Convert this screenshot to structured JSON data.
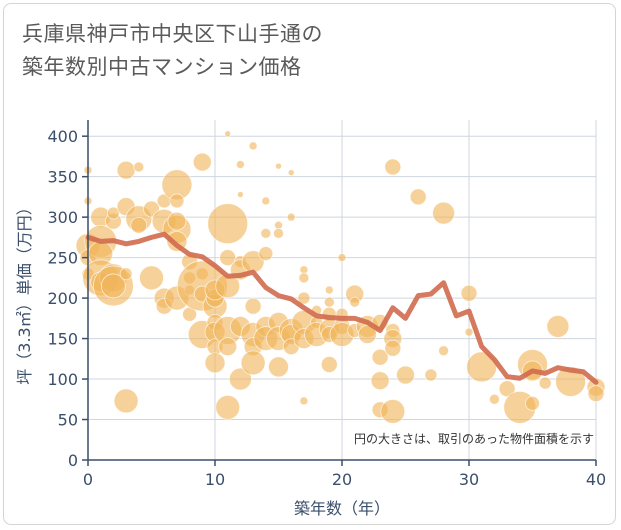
{
  "title_line1": "兵庫県神戸市中央区下山手通の",
  "title_line2": "築年数別中古マンション価格",
  "chart_data": {
    "type": "scatter",
    "title": "兵庫県神戸市中央区下山手通の築年数別中古マンション価格",
    "xlabel": "築年数（年）",
    "ylabel": "坪（3.3㎡）単価（万円）",
    "xlim": [
      0,
      40
    ],
    "ylim": [
      0,
      420
    ],
    "xticks": [
      0,
      10,
      20,
      30,
      40
    ],
    "yticks": [
      0,
      50,
      100,
      150,
      200,
      250,
      300,
      350,
      400
    ],
    "grid": true,
    "annotation": "円の大きさは、取引のあった物件面積を示す",
    "colors": {
      "bubble": "#f0b45a",
      "line": "#d06a4e",
      "grid": "#cfd6df",
      "axis": "#3b4f6b"
    },
    "series": [
      {
        "type": "line",
        "x": [
          0,
          1,
          2,
          3,
          4,
          5,
          6,
          7,
          8,
          9,
          10,
          11,
          12,
          13,
          14,
          15,
          16,
          17,
          18,
          19,
          20,
          21,
          22,
          23,
          24,
          25,
          26,
          27,
          28,
          29,
          30,
          31,
          32,
          33,
          34,
          35,
          36,
          37,
          38,
          39,
          40
        ],
        "y": [
          275,
          270,
          271,
          267,
          270,
          275,
          279,
          265,
          254,
          251,
          240,
          227,
          228,
          232,
          213,
          203,
          199,
          188,
          178,
          176,
          175,
          175,
          170,
          160,
          188,
          175,
          203,
          205,
          219,
          178,
          184,
          140,
          124,
          103,
          101,
          110,
          107,
          114,
          111,
          109,
          96
        ]
      },
      {
        "type": "bubble",
        "points": [
          [
            0,
            358,
            4
          ],
          [
            0,
            320,
            4
          ],
          [
            0,
            265,
            12
          ],
          [
            0,
            250,
            8
          ],
          [
            0,
            230,
            6
          ],
          [
            1,
            300,
            10
          ],
          [
            1,
            270,
            16
          ],
          [
            1,
            255,
            12
          ],
          [
            1,
            225,
            18
          ],
          [
            1,
            220,
            10
          ],
          [
            2,
            225,
            14
          ],
          [
            2,
            215,
            20
          ],
          [
            2,
            295,
            8
          ],
          [
            2,
            305,
            6
          ],
          [
            2,
            215,
            12
          ],
          [
            3,
            358,
            9
          ],
          [
            3,
            313,
            9
          ],
          [
            3,
            73,
            12
          ],
          [
            3,
            230,
            6
          ],
          [
            4,
            298,
            13
          ],
          [
            4,
            362,
            5
          ],
          [
            4,
            290,
            8
          ],
          [
            5,
            225,
            12
          ],
          [
            5,
            310,
            8
          ],
          [
            6,
            320,
            7
          ],
          [
            6,
            295,
            12
          ],
          [
            6,
            200,
            10
          ],
          [
            6,
            190,
            8
          ],
          [
            7,
            340,
            15
          ],
          [
            7,
            320,
            7
          ],
          [
            7,
            285,
            14
          ],
          [
            7,
            270,
            10
          ],
          [
            7,
            200,
            12
          ],
          [
            7,
            295,
            9
          ],
          [
            8,
            245,
            8
          ],
          [
            8,
            225,
            6
          ],
          [
            8,
            210,
            5
          ],
          [
            8,
            180,
            7
          ],
          [
            9,
            368,
            9
          ],
          [
            9,
            230,
            6
          ],
          [
            9,
            215,
            25
          ],
          [
            9,
            205,
            8
          ],
          [
            9,
            155,
            14
          ],
          [
            10,
            190,
            12
          ],
          [
            10,
            200,
            9
          ],
          [
            10,
            210,
            10
          ],
          [
            10,
            170,
            8
          ],
          [
            10,
            158,
            10
          ],
          [
            10,
            140,
            8
          ],
          [
            10,
            120,
            10
          ],
          [
            11,
            403,
            3
          ],
          [
            11,
            292,
            20
          ],
          [
            11,
            250,
            8
          ],
          [
            11,
            215,
            12
          ],
          [
            11,
            160,
            14
          ],
          [
            11,
            140,
            9
          ],
          [
            11,
            65,
            12
          ],
          [
            12,
            365,
            4
          ],
          [
            12,
            328,
            3
          ],
          [
            12,
            245,
            6
          ],
          [
            12,
            235,
            10
          ],
          [
            12,
            165,
            10
          ],
          [
            12,
            100,
            11
          ],
          [
            13,
            388,
            4
          ],
          [
            13,
            245,
            11
          ],
          [
            13,
            190,
            8
          ],
          [
            13,
            155,
            12
          ],
          [
            13,
            140,
            9
          ],
          [
            13,
            120,
            12
          ],
          [
            14,
            320,
            4
          ],
          [
            14,
            280,
            5
          ],
          [
            14,
            255,
            7
          ],
          [
            14,
            165,
            10
          ],
          [
            14,
            150,
            12
          ],
          [
            15,
            363,
            3
          ],
          [
            15,
            290,
            4
          ],
          [
            15,
            280,
            5
          ],
          [
            15,
            170,
            10
          ],
          [
            15,
            150,
            12
          ],
          [
            15,
            115,
            10
          ],
          [
            16,
            355,
            3
          ],
          [
            16,
            300,
            4
          ],
          [
            16,
            160,
            12
          ],
          [
            16,
            155,
            10
          ],
          [
            16,
            140,
            8
          ],
          [
            17,
            235,
            4
          ],
          [
            17,
            225,
            5
          ],
          [
            17,
            200,
            6
          ],
          [
            17,
            170,
            12
          ],
          [
            17,
            150,
            10
          ],
          [
            17,
            73,
            4
          ],
          [
            18,
            185,
            5
          ],
          [
            18,
            170,
            6
          ],
          [
            18,
            155,
            12
          ],
          [
            19,
            210,
            4
          ],
          [
            19,
            195,
            5
          ],
          [
            19,
            180,
            7
          ],
          [
            19,
            162,
            10
          ],
          [
            19,
            155,
            8
          ],
          [
            19,
            118,
            8
          ],
          [
            20,
            250,
            4
          ],
          [
            20,
            180,
            6
          ],
          [
            20,
            165,
            8
          ],
          [
            20,
            155,
            12
          ],
          [
            21,
            205,
            9
          ],
          [
            21,
            195,
            5
          ],
          [
            21,
            160,
            7
          ],
          [
            22,
            165,
            11
          ],
          [
            22,
            155,
            9
          ],
          [
            23,
            170,
            8
          ],
          [
            23,
            127,
            8
          ],
          [
            23,
            98,
            9
          ],
          [
            23,
            62,
            8
          ],
          [
            24,
            362,
            8
          ],
          [
            24,
            160,
            7
          ],
          [
            24,
            150,
            9
          ],
          [
            24,
            138,
            8
          ],
          [
            24,
            60,
            12
          ],
          [
            25,
            105,
            9
          ],
          [
            26,
            325,
            8
          ],
          [
            27,
            105,
            6
          ],
          [
            28,
            305,
            11
          ],
          [
            28,
            135,
            5
          ],
          [
            30,
            206,
            8
          ],
          [
            30,
            158,
            4
          ],
          [
            31,
            115,
            15
          ],
          [
            32,
            75,
            5
          ],
          [
            33,
            88,
            8
          ],
          [
            34,
            65,
            16
          ],
          [
            35,
            118,
            15
          ],
          [
            35,
            110,
            10
          ],
          [
            35,
            70,
            7
          ],
          [
            36,
            95,
            6
          ],
          [
            37,
            165,
            11
          ],
          [
            38,
            97,
            15
          ],
          [
            40,
            90,
            9
          ],
          [
            40,
            82,
            8
          ]
        ]
      }
    ]
  }
}
